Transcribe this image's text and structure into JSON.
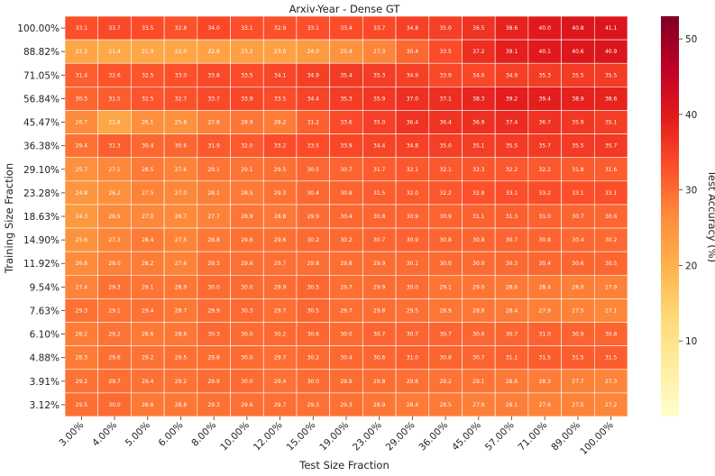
{
  "chart_data": {
    "type": "heatmap",
    "title": "Arxiv-Year - Dense GT",
    "xlabel": "Test Size Fraction",
    "ylabel": "Training Size Fraction",
    "colorbar_label": "Test Accuracy (%)",
    "colorbar_range": [
      0,
      53
    ],
    "colorbar_ticks": [
      10,
      20,
      30,
      40,
      50
    ],
    "colormap": [
      "#ffffcc",
      "#ffeda0",
      "#fed976",
      "#feb24c",
      "#fd8d3c",
      "#fc4e2a",
      "#e31a1c",
      "#bd0026",
      "#800026"
    ],
    "x": [
      "3.00%",
      "4.00%",
      "5.00%",
      "6.00%",
      "8.00%",
      "10.00%",
      "12.00%",
      "15.00%",
      "19.00%",
      "23.00%",
      "29.00%",
      "36.00%",
      "45.00%",
      "57.00%",
      "71.00%",
      "89.00%",
      "100.00%"
    ],
    "y": [
      "100.00%",
      "88.82%",
      "71.05%",
      "56.84%",
      "45.47%",
      "36.38%",
      "29.10%",
      "23.28%",
      "18.63%",
      "14.90%",
      "11.92%",
      "9.54%",
      "7.63%",
      "6.10%",
      "4.88%",
      "3.91%",
      "3.12%"
    ],
    "values": [
      [
        33.1,
        33.7,
        33.5,
        32.8,
        34.0,
        33.1,
        32.9,
        33.1,
        33.4,
        33.7,
        34.8,
        35.0,
        36.5,
        38.6,
        40.0,
        40.8,
        41.1
      ],
      [
        22.2,
        21.4,
        21.9,
        22.0,
        22.8,
        23.2,
        23.0,
        24.0,
        25.4,
        27.3,
        30.4,
        33.5,
        37.2,
        39.1,
        40.1,
        40.6,
        40.9
      ],
      [
        31.4,
        32.6,
        32.5,
        33.0,
        33.8,
        33.5,
        34.1,
        34.9,
        35.4,
        35.3,
        34.9,
        33.9,
        34.0,
        34.9,
        35.3,
        35.5,
        35.5
      ],
      [
        30.5,
        31.5,
        32.5,
        32.7,
        33.7,
        33.9,
        33.5,
        34.4,
        35.3,
        35.9,
        37.0,
        37.1,
        38.3,
        39.2,
        39.4,
        38.9,
        38.6
      ],
      [
        26.7,
        21.8,
        26.1,
        25.8,
        27.8,
        28.9,
        28.2,
        31.2,
        33.6,
        35.0,
        36.4,
        36.4,
        36.9,
        37.4,
        36.7,
        35.9,
        35.1
      ],
      [
        29.4,
        31.3,
        30.4,
        30.6,
        31.9,
        32.0,
        33.2,
        33.5,
        33.9,
        34.4,
        34.8,
        35.0,
        35.1,
        35.5,
        35.7,
        35.5,
        35.7
      ],
      [
        25.7,
        27.1,
        28.5,
        27.6,
        29.1,
        29.1,
        29.5,
        30.5,
        30.7,
        31.7,
        32.1,
        32.1,
        32.3,
        32.2,
        32.2,
        31.8,
        31.6
      ],
      [
        24.8,
        26.2,
        27.5,
        27.0,
        28.1,
        28.5,
        29.3,
        30.4,
        30.8,
        31.5,
        32.0,
        32.2,
        32.8,
        33.1,
        33.2,
        33.1,
        33.1
      ],
      [
        24.3,
        26.9,
        27.0,
        26.7,
        27.7,
        28.9,
        28.8,
        29.9,
        30.4,
        30.8,
        30.9,
        30.9,
        31.1,
        31.3,
        31.0,
        30.7,
        30.6
      ],
      [
        25.6,
        27.3,
        28.4,
        27.5,
        28.8,
        29.6,
        29.6,
        30.2,
        30.2,
        30.7,
        30.9,
        30.8,
        30.8,
        30.7,
        30.8,
        30.4,
        30.2
      ],
      [
        26.6,
        28.0,
        28.2,
        27.6,
        29.3,
        29.6,
        29.7,
        29.8,
        29.8,
        29.9,
        30.1,
        30.0,
        30.0,
        30.3,
        30.4,
        30.6,
        30.5
      ],
      [
        27.4,
        29.3,
        29.1,
        28.9,
        30.0,
        30.0,
        29.9,
        30.5,
        29.7,
        29.9,
        30.0,
        29.1,
        29.0,
        28.6,
        28.4,
        28.0,
        27.9
      ],
      [
        29.3,
        29.1,
        29.4,
        28.7,
        29.9,
        30.3,
        29.7,
        30.5,
        29.7,
        29.8,
        29.5,
        28.9,
        28.8,
        28.4,
        27.9,
        27.5,
        27.1
      ],
      [
        28.2,
        29.2,
        28.6,
        28.8,
        30.3,
        30.0,
        30.2,
        30.6,
        30.0,
        30.7,
        30.7,
        30.7,
        30.6,
        30.7,
        31.0,
        30.9,
        30.8
      ],
      [
        28.3,
        29.6,
        29.2,
        29.5,
        29.8,
        30.0,
        29.7,
        30.2,
        30.4,
        30.6,
        31.0,
        30.8,
        30.7,
        31.1,
        31.5,
        31.5,
        31.5
      ],
      [
        29.2,
        29.7,
        29.4,
        29.2,
        29.9,
        30.0,
        29.4,
        30.0,
        29.9,
        29.8,
        29.6,
        29.2,
        29.1,
        28.6,
        28.3,
        27.7,
        27.3
      ],
      [
        29.5,
        30.0,
        28.6,
        28.8,
        29.3,
        29.6,
        29.7,
        29.3,
        29.3,
        28.9,
        28.4,
        28.5,
        27.9,
        28.1,
        27.6,
        27.5,
        27.2
      ]
    ]
  }
}
